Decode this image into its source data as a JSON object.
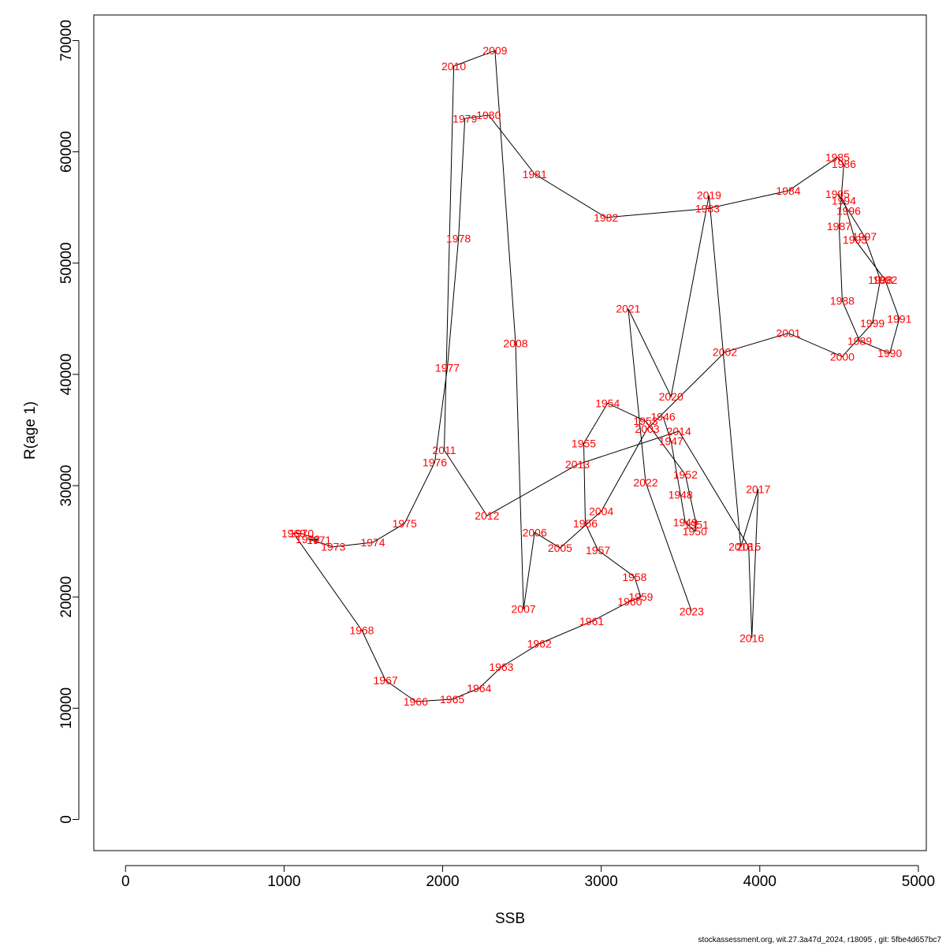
{
  "chart_data": {
    "type": "line",
    "title": "",
    "xlabel": "SSB",
    "ylabel": "R(age 1)",
    "xlim": [
      -200,
      5050
    ],
    "ylim": [
      -2800,
      72300
    ],
    "x_ticks": [
      0,
      1000,
      2000,
      3000,
      4000,
      5000
    ],
    "y_ticks": [
      0,
      10000,
      20000,
      30000,
      40000,
      50000,
      60000,
      70000
    ],
    "grid": false,
    "line_color": "#000000",
    "label_color": "#ff0000",
    "points": [
      {
        "year": "1946",
        "x": 3390,
        "y": 36200
      },
      {
        "year": "1947",
        "x": 3440,
        "y": 34000
      },
      {
        "year": "1948",
        "x": 3500,
        "y": 29200
      },
      {
        "year": "1949",
        "x": 3530,
        "y": 26700
      },
      {
        "year": "1950",
        "x": 3590,
        "y": 25900
      },
      {
        "year": "1951",
        "x": 3600,
        "y": 26500
      },
      {
        "year": "1952",
        "x": 3530,
        "y": 31000
      },
      {
        "year": "1953",
        "x": 3280,
        "y": 35800
      },
      {
        "year": "1954",
        "x": 3040,
        "y": 37400
      },
      {
        "year": "1955",
        "x": 2890,
        "y": 33800
      },
      {
        "year": "1956",
        "x": 2900,
        "y": 26600
      },
      {
        "year": "1957",
        "x": 2980,
        "y": 24200
      },
      {
        "year": "1958",
        "x": 3210,
        "y": 21800
      },
      {
        "year": "1959",
        "x": 3250,
        "y": 20000
      },
      {
        "year": "1960",
        "x": 3180,
        "y": 19600
      },
      {
        "year": "1961",
        "x": 2940,
        "y": 17800
      },
      {
        "year": "1962",
        "x": 2610,
        "y": 15800
      },
      {
        "year": "1963",
        "x": 2370,
        "y": 13700
      },
      {
        "year": "1964",
        "x": 2230,
        "y": 11800
      },
      {
        "year": "1965",
        "x": 2060,
        "y": 10800
      },
      {
        "year": "1966",
        "x": 1830,
        "y": 10600
      },
      {
        "year": "1967",
        "x": 1640,
        "y": 12500
      },
      {
        "year": "1968",
        "x": 1490,
        "y": 17000
      },
      {
        "year": "1969",
        "x": 1060,
        "y": 25700
      },
      {
        "year": "1970",
        "x": 1110,
        "y": 25700
      },
      {
        "year": "1971",
        "x": 1220,
        "y": 25100
      },
      {
        "year": "1972",
        "x": 1150,
        "y": 25200
      },
      {
        "year": "1973",
        "x": 1310,
        "y": 24500
      },
      {
        "year": "1974",
        "x": 1560,
        "y": 24900
      },
      {
        "year": "1975",
        "x": 1760,
        "y": 26600
      },
      {
        "year": "1976",
        "x": 1950,
        "y": 32100
      },
      {
        "year": "1977",
        "x": 2030,
        "y": 40600
      },
      {
        "year": "1978",
        "x": 2100,
        "y": 52200
      },
      {
        "year": "1979",
        "x": 2140,
        "y": 63000
      },
      {
        "year": "1980",
        "x": 2290,
        "y": 63300
      },
      {
        "year": "1981",
        "x": 2580,
        "y": 58000
      },
      {
        "year": "1982",
        "x": 3030,
        "y": 54100
      },
      {
        "year": "1983",
        "x": 3670,
        "y": 54900
      },
      {
        "year": "1984",
        "x": 4180,
        "y": 56500
      },
      {
        "year": "1985",
        "x": 4490,
        "y": 59500
      },
      {
        "year": "1986",
        "x": 4530,
        "y": 58900
      },
      {
        "year": "1987",
        "x": 4500,
        "y": 53300
      },
      {
        "year": "1988",
        "x": 4520,
        "y": 46600
      },
      {
        "year": "1989",
        "x": 4630,
        "y": 43000
      },
      {
        "year": "1990",
        "x": 4820,
        "y": 41900
      },
      {
        "year": "1991",
        "x": 4880,
        "y": 45000
      },
      {
        "year": "1992",
        "x": 4790,
        "y": 48500
      },
      {
        "year": "1993",
        "x": 4600,
        "y": 52100
      },
      {
        "year": "1994",
        "x": 4530,
        "y": 55600
      },
      {
        "year": "1995",
        "x": 4490,
        "y": 56200
      },
      {
        "year": "1996",
        "x": 4560,
        "y": 54700
      },
      {
        "year": "1997",
        "x": 4660,
        "y": 52400
      },
      {
        "year": "1998",
        "x": 4760,
        "y": 48500
      },
      {
        "year": "1999",
        "x": 4710,
        "y": 44600
      },
      {
        "year": "2000",
        "x": 4520,
        "y": 41600
      },
      {
        "year": "2001",
        "x": 4180,
        "y": 43700
      },
      {
        "year": "2002",
        "x": 3780,
        "y": 42000
      },
      {
        "year": "2003",
        "x": 3290,
        "y": 35100
      },
      {
        "year": "2004",
        "x": 3000,
        "y": 27700
      },
      {
        "year": "2005",
        "x": 2740,
        "y": 24400
      },
      {
        "year": "2006",
        "x": 2580,
        "y": 25800
      },
      {
        "year": "2007",
        "x": 2510,
        "y": 18900
      },
      {
        "year": "2008",
        "x": 2460,
        "y": 42800
      },
      {
        "year": "2009",
        "x": 2330,
        "y": 69100
      },
      {
        "year": "2010",
        "x": 2070,
        "y": 67700
      },
      {
        "year": "2011",
        "x": 2010,
        "y": 33200
      },
      {
        "year": "2012",
        "x": 2280,
        "y": 27300
      },
      {
        "year": "2013",
        "x": 2850,
        "y": 31900
      },
      {
        "year": "2014",
        "x": 3490,
        "y": 34900
      },
      {
        "year": "2015",
        "x": 3930,
        "y": 24500
      },
      {
        "year": "2016",
        "x": 3950,
        "y": 16300
      },
      {
        "year": "2017",
        "x": 3990,
        "y": 29700
      },
      {
        "year": "2018",
        "x": 3880,
        "y": 24500
      },
      {
        "year": "2019",
        "x": 3680,
        "y": 56100
      },
      {
        "year": "2020",
        "x": 3440,
        "y": 38000
      },
      {
        "year": "2021",
        "x": 3170,
        "y": 45900
      },
      {
        "year": "2022",
        "x": 3280,
        "y": 30300
      },
      {
        "year": "2023",
        "x": 3570,
        "y": 18700
      }
    ]
  },
  "footer": {
    "text": "stockassessment.org, wit.27.3a47d_2024, r18095 , git: 5fbe4d657bc7"
  }
}
